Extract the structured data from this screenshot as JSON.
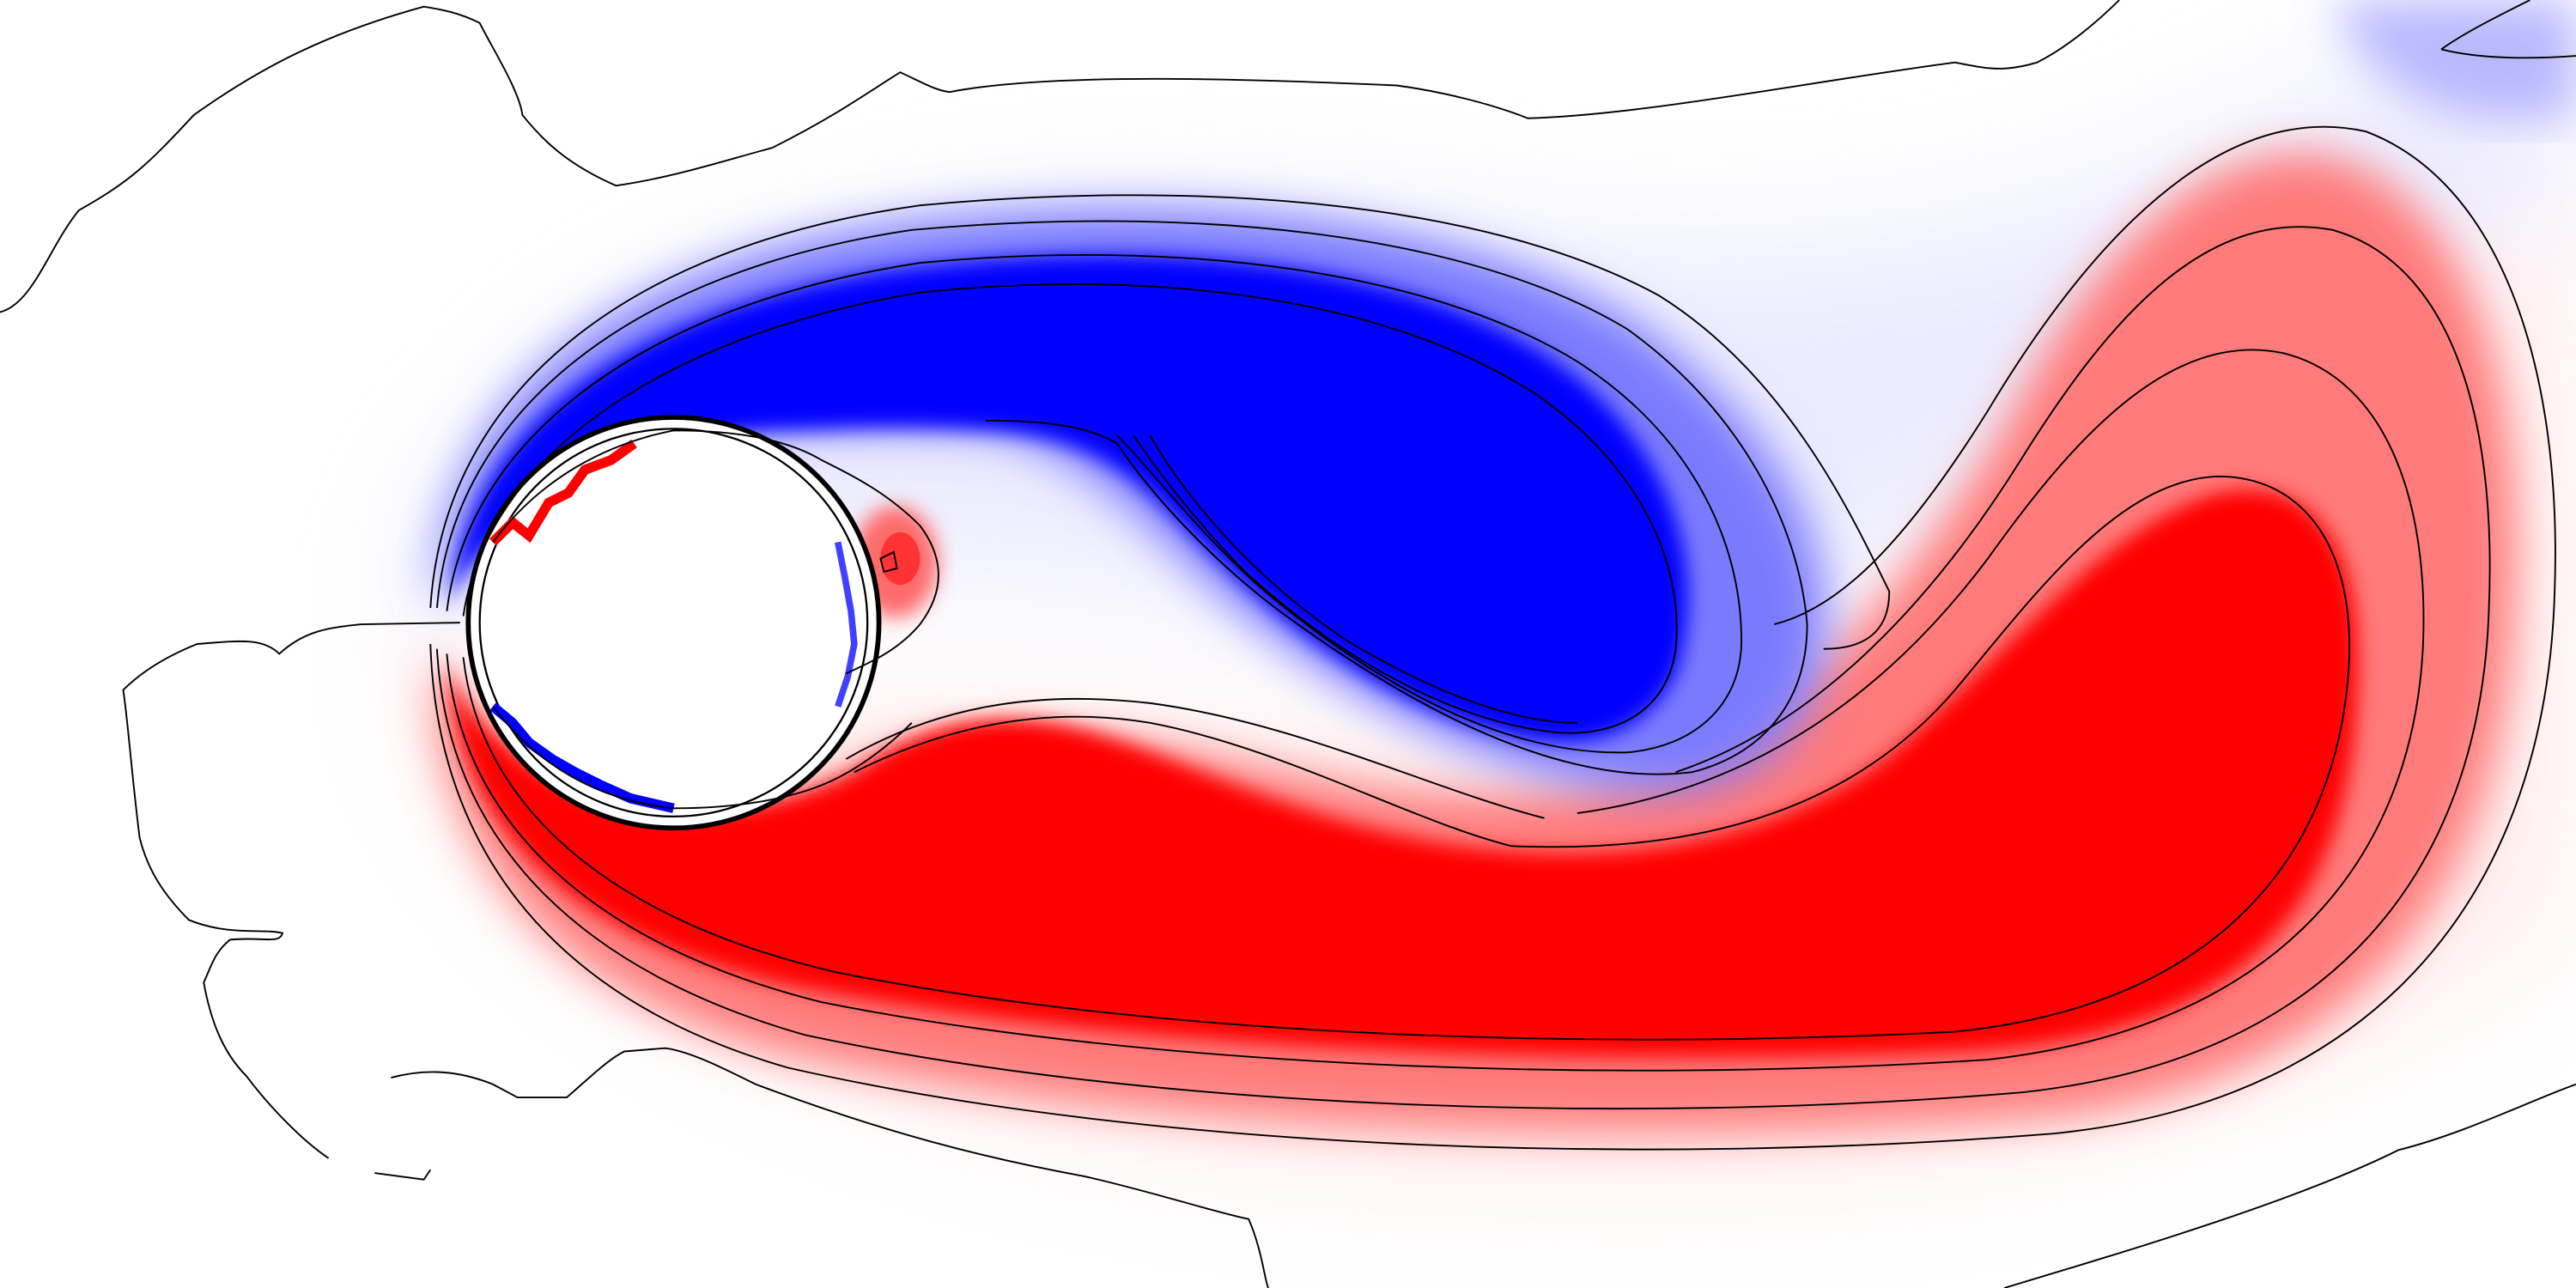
{
  "figure": {
    "kind": "vorticity-field-cylinder-wake",
    "colormap": "blue-white-red",
    "colors": {
      "background": "#ffffff",
      "negative": "#0000ff",
      "positive": "#ff0000",
      "neutral": "#ffffff",
      "contour": "#000000",
      "cylinder_outline": "#000000"
    },
    "contours_visible": true,
    "cylinder_visible": true
  }
}
